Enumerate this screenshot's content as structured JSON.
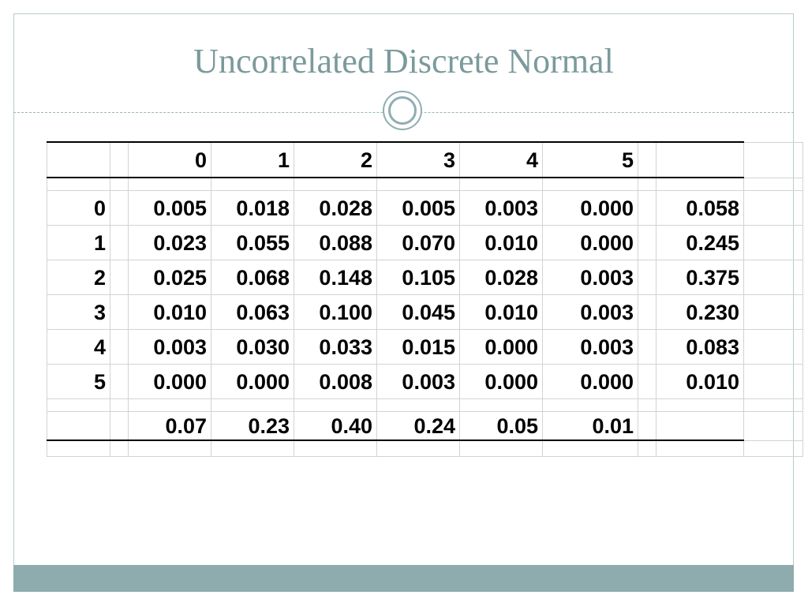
{
  "slide": {
    "title": "Uncorrelated Discrete Normal",
    "accent_color": "#8eabad",
    "title_color": "#7b9a9c"
  },
  "table": {
    "columns": [
      "0",
      "1",
      "2",
      "3",
      "4",
      "5"
    ],
    "rows": [
      {
        "label": "0",
        "values": [
          "0.005",
          "0.018",
          "0.028",
          "0.005",
          "0.003",
          "0.000"
        ],
        "total": "0.058"
      },
      {
        "label": "1",
        "values": [
          "0.023",
          "0.055",
          "0.088",
          "0.070",
          "0.010",
          "0.000"
        ],
        "total": "0.245"
      },
      {
        "label": "2",
        "values": [
          "0.025",
          "0.068",
          "0.148",
          "0.105",
          "0.028",
          "0.003"
        ],
        "total": "0.375"
      },
      {
        "label": "3",
        "values": [
          "0.010",
          "0.063",
          "0.100",
          "0.045",
          "0.010",
          "0.003"
        ],
        "total": "0.230"
      },
      {
        "label": "4",
        "values": [
          "0.003",
          "0.030",
          "0.033",
          "0.015",
          "0.000",
          "0.003"
        ],
        "total": "0.083"
      },
      {
        "label": "5",
        "values": [
          "0.000",
          "0.000",
          "0.008",
          "0.003",
          "0.000",
          "0.000"
        ],
        "total": "0.010"
      }
    ],
    "column_totals": [
      "0.07",
      "0.23",
      "0.40",
      "0.24",
      "0.05",
      "0.01"
    ]
  }
}
